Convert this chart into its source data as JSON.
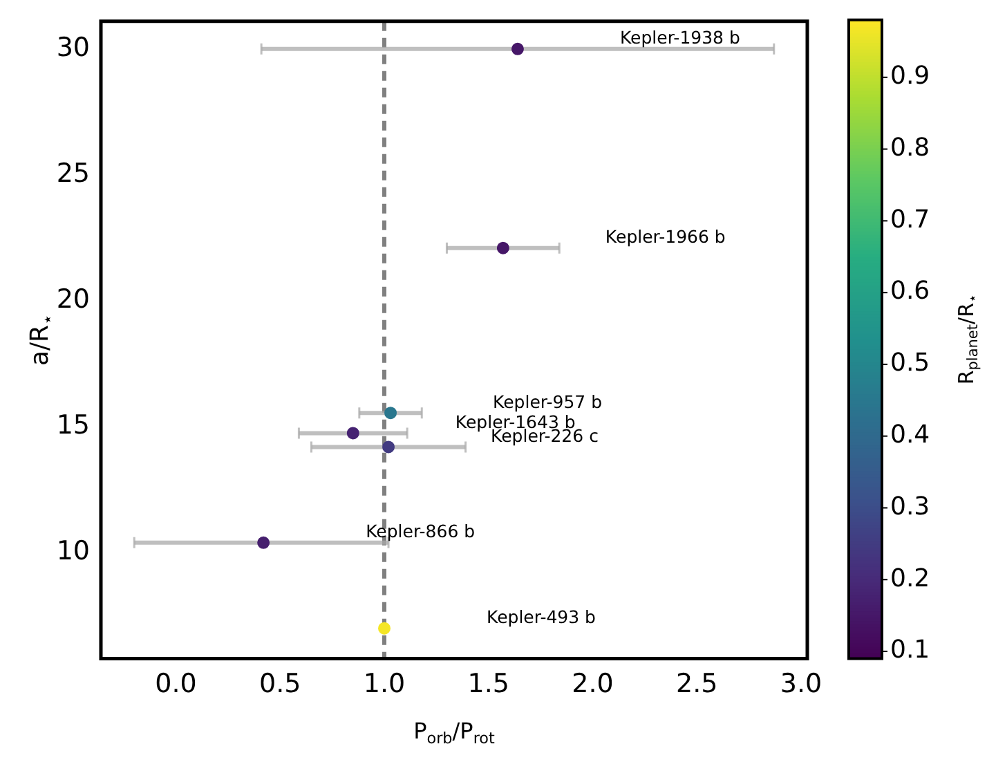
{
  "chart_data": {
    "type": "scatter",
    "xlabel": "P$_{orb}$/P$_{rot}$",
    "ylabel": "a/R$_{⋆}$",
    "clabel": "R$_{planet}$/R$_{⋆}$",
    "x": [
      1.64,
      1.57,
      1.03,
      0.85,
      1.02,
      0.42,
      1.0
    ],
    "values": [
      30.0,
      22.1,
      15.55,
      14.75,
      14.2,
      10.4,
      7.0
    ],
    "cvalues": [
      0.15,
      0.15,
      0.45,
      0.18,
      0.25,
      0.17,
      0.97
    ],
    "xerrors": [
      [
        0.41,
        2.87
      ],
      [
        1.3,
        1.84
      ],
      [
        0.88,
        1.18
      ],
      [
        0.59,
        1.11
      ],
      [
        0.65,
        1.39
      ],
      [
        -0.2,
        1.02
      ],
      null
    ],
    "xlim": [
      -0.36,
      3.03
    ],
    "xticks": [
      {
        "value": 0,
        "label": "0.0"
      },
      {
        "value": 0.5,
        "label": "0.5"
      },
      {
        "value": 1,
        "label": "1.0"
      },
      {
        "value": 1.5,
        "label": "1.5"
      },
      {
        "value": 2,
        "label": "2.0"
      },
      {
        "value": 2.5,
        "label": "2.5"
      },
      {
        "value": 3,
        "label": "3.0"
      }
    ],
    "ylim": [
      5.8,
      31.1
    ],
    "yticks": [
      10,
      15,
      20,
      25,
      30
    ],
    "clim": [
      0.09,
      0.98
    ],
    "cticks": [
      0.1,
      0.2,
      0.3,
      0.4,
      0.5,
      0.6,
      0.7,
      0.8,
      0.9
    ],
    "ref_lines": [
      {
        "axis": "x",
        "value": 1,
        "color": "#808080",
        "line_style": "dashed"
      }
    ],
    "annotations": [
      "Kepler-1938 b",
      "Kepler-1966 b",
      "Kepler-957 b",
      "Kepler-1643 b",
      "Kepler-226 c",
      "Kepler-866 b",
      "Kepler-493 b"
    ],
    "grid": false,
    "legend": false,
    "marker": "circle"
  }
}
